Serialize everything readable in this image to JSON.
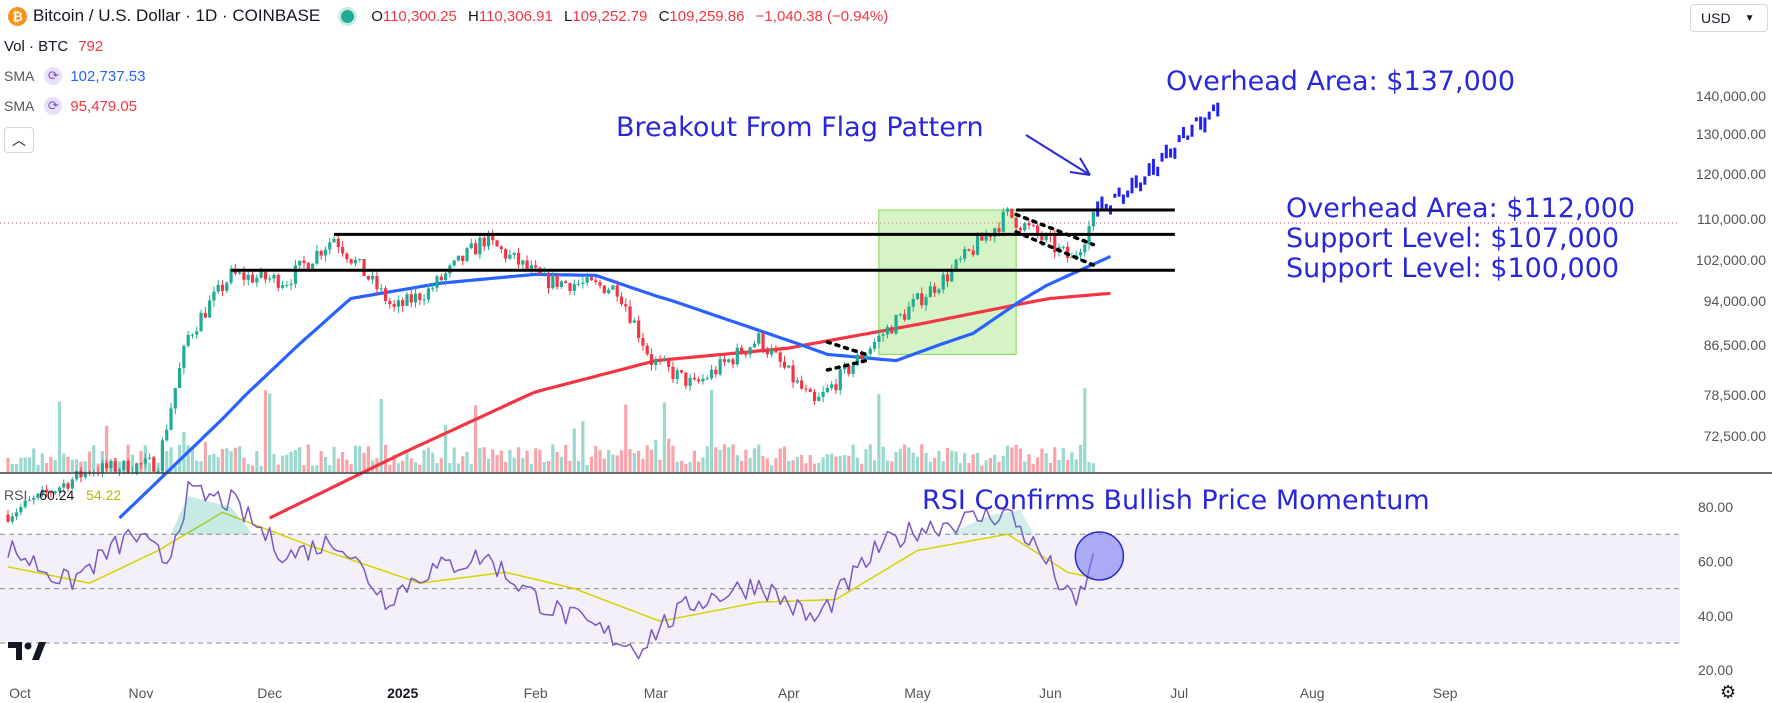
{
  "header": {
    "btc_icon": "₿",
    "title": "Bitcoin / U.S. Dollar · 1D · COINBASE",
    "open_label": "O",
    "open": "110,300.25",
    "high_label": "H",
    "high": "110,306.91",
    "low_label": "L",
    "low": "109,252.79",
    "close_label": "C",
    "close": "109,259.86",
    "change": "−1,040.38 (−0.94%)"
  },
  "indicators": {
    "vol": {
      "label": "Vol · BTC",
      "value": "792"
    },
    "sma_fast": {
      "label": "SMA",
      "value": "102,737.53",
      "color": "#2962ff"
    },
    "sma_slow": {
      "label": "SMA",
      "value": "95,479.05",
      "color": "#f23645"
    },
    "rsi": {
      "label": "RSI",
      "value": "60.24",
      "ma_value": "54.22"
    }
  },
  "controls": {
    "currency": "USD",
    "collapse_icon": "chevron-up-icon",
    "settings_icon": "gear-icon"
  },
  "chart_data": {
    "type": "candlestick",
    "price_axis": {
      "ticks": [
        140000,
        130000,
        120000,
        110000,
        102000,
        94000,
        86500,
        78500,
        72500
      ],
      "tick_labels": [
        "140,000.00",
        "130,000.00",
        "120,000.00",
        "110,000.00",
        "102,000.00",
        "94,000.00",
        "86,500.00",
        "78,500.00",
        "72,500.00"
      ]
    },
    "rsi_axis": {
      "ticks": [
        80,
        60,
        40,
        20
      ],
      "tick_labels": [
        "80.00",
        "60.00",
        "40.00",
        "20.00"
      ],
      "bands": [
        30,
        50,
        70
      ]
    },
    "time_axis": {
      "labels": [
        "Oct",
        "Nov",
        "Dec",
        "2025",
        "Feb",
        "Mar",
        "Apr",
        "May",
        "Jun",
        "Jul",
        "Aug",
        "Sep"
      ],
      "dates": [
        "2024-10-01",
        "2024-11-01",
        "2024-12-01",
        "2025-01-01",
        "2025-02-01",
        "2025-03-01",
        "2025-04-01",
        "2025-05-01",
        "2025-06-01",
        "2025-07-01",
        "2025-08-01",
        "2025-09-01"
      ]
    },
    "last_price": 109259.86,
    "projection_end": 137000,
    "horizontal_levels": [
      {
        "value": 112000,
        "from": "2025-05-24",
        "to": "2025-06-30"
      },
      {
        "value": 107000,
        "from": "2024-12-16",
        "to": "2025-06-30"
      },
      {
        "value": 100000,
        "from": "2024-11-22",
        "to": "2025-06-30"
      }
    ],
    "consolidation_box": {
      "from": "2025-04-22",
      "to": "2025-05-24",
      "low": 85000,
      "high": 112000
    },
    "flag_patterns": [
      {
        "from": "2025-04-10",
        "to": "2025-04-19",
        "top": [
          87000,
          85000
        ],
        "bottom": [
          82500,
          84000
        ]
      },
      {
        "from": "2025-05-24",
        "to": "2025-06-11",
        "top": [
          111000,
          105000
        ],
        "bottom": [
          107500,
          101000
        ]
      }
    ],
    "annotations": [
      {
        "id": "overhead-137",
        "text": "Overhead Area: $137,000"
      },
      {
        "id": "breakout",
        "text": "Breakout From Flag Pattern"
      },
      {
        "id": "overhead-112",
        "text": "Overhead Area: $112,000"
      },
      {
        "id": "support-107",
        "text": "Support Level: $107,000"
      },
      {
        "id": "support-100",
        "text": "Support Level: $100,000"
      },
      {
        "id": "rsi-note",
        "text": "RSI Confirms Bullish Price Momentum"
      }
    ],
    "price_key_points": [
      [
        "2024-10-01",
        61000
      ],
      [
        "2024-10-20",
        67500
      ],
      [
        "2024-11-05",
        68500
      ],
      [
        "2024-11-12",
        88000
      ],
      [
        "2024-11-22",
        99000
      ],
      [
        "2024-12-05",
        98000
      ],
      [
        "2024-12-16",
        106500
      ],
      [
        "2024-12-30",
        92500
      ],
      [
        "2025-01-07",
        96000
      ],
      [
        "2025-01-20",
        106000
      ],
      [
        "2025-02-03",
        98000
      ],
      [
        "2025-02-20",
        96500
      ],
      [
        "2025-02-28",
        84000
      ],
      [
        "2025-03-10",
        80000
      ],
      [
        "2025-03-25",
        87500
      ],
      [
        "2025-04-07",
        77000
      ],
      [
        "2025-04-21",
        87000
      ],
      [
        "2025-05-08",
        99000
      ],
      [
        "2025-05-22",
        111000
      ],
      [
        "2025-06-01",
        105000
      ],
      [
        "2025-06-06",
        102000
      ],
      [
        "2025-06-11",
        110000
      ]
    ],
    "sma50_key_points": [
      [
        "2024-10-27",
        60500
      ],
      [
        "2024-11-20",
        75000
      ],
      [
        "2024-12-20",
        94500
      ],
      [
        "2025-01-10",
        97500
      ],
      [
        "2025-02-01",
        99200
      ],
      [
        "2025-02-15",
        99000
      ],
      [
        "2025-03-01",
        95000
      ],
      [
        "2025-04-10",
        85000
      ],
      [
        "2025-04-26",
        84000
      ],
      [
        "2025-05-14",
        88500
      ],
      [
        "2025-05-31",
        97000
      ],
      [
        "2025-06-15",
        102700
      ]
    ],
    "sma200_key_points": [
      [
        "2024-12-01",
        60500
      ],
      [
        "2025-01-01",
        70000
      ],
      [
        "2025-02-01",
        79000
      ],
      [
        "2025-03-01",
        84000
      ],
      [
        "2025-04-01",
        86000
      ],
      [
        "2025-05-01",
        90000
      ],
      [
        "2025-06-01",
        94500
      ],
      [
        "2025-06-15",
        95500
      ]
    ],
    "rsi_key_points": [
      [
        "2024-10-01",
        65
      ],
      [
        "2024-10-15",
        52
      ],
      [
        "2024-10-30",
        70
      ],
      [
        "2024-11-07",
        60
      ],
      [
        "2024-11-12",
        85
      ],
      [
        "2024-11-22",
        82
      ],
      [
        "2024-12-05",
        62
      ],
      [
        "2024-12-17",
        68
      ],
      [
        "2024-12-28",
        46
      ],
      [
        "2025-01-06",
        56
      ],
      [
        "2025-01-20",
        62
      ],
      [
        "2025-02-03",
        44
      ],
      [
        "2025-02-25",
        28
      ],
      [
        "2025-03-02",
        36
      ],
      [
        "2025-03-10",
        45
      ],
      [
        "2025-03-25",
        52
      ],
      [
        "2025-04-07",
        38
      ],
      [
        "2025-04-22",
        65
      ],
      [
        "2025-05-01",
        72
      ],
      [
        "2025-05-22",
        78
      ],
      [
        "2025-06-01",
        58
      ],
      [
        "2025-06-05",
        47
      ],
      [
        "2025-06-07",
        44
      ],
      [
        "2025-06-11",
        60
      ]
    ],
    "rsi_ma_key_points": [
      [
        "2024-10-01",
        58
      ],
      [
        "2024-10-20",
        52
      ],
      [
        "2024-11-05",
        64
      ],
      [
        "2024-11-20",
        78
      ],
      [
        "2024-12-10",
        66
      ],
      [
        "2025-01-05",
        52
      ],
      [
        "2025-01-25",
        56
      ],
      [
        "2025-02-10",
        50
      ],
      [
        "2025-03-02",
        38
      ],
      [
        "2025-03-25",
        45
      ],
      [
        "2025-04-12",
        46
      ],
      [
        "2025-05-01",
        64
      ],
      [
        "2025-05-22",
        70
      ],
      [
        "2025-06-05",
        56
      ],
      [
        "2025-06-11",
        54
      ]
    ],
    "projection_path": [
      [
        "2025-06-12",
        112000
      ],
      [
        "2025-06-22",
        118000
      ],
      [
        "2025-07-01",
        128000
      ],
      [
        "2025-07-10",
        137000
      ]
    ],
    "colors": {
      "up": "#22ab94",
      "down": "#f23645",
      "sma_fast": "#2962ff",
      "sma_slow": "#f23645",
      "rsi": "#7e57c2",
      "rsi_ma": "#d4d400",
      "annotation": "#2927d9",
      "box": "#9ee374"
    }
  }
}
